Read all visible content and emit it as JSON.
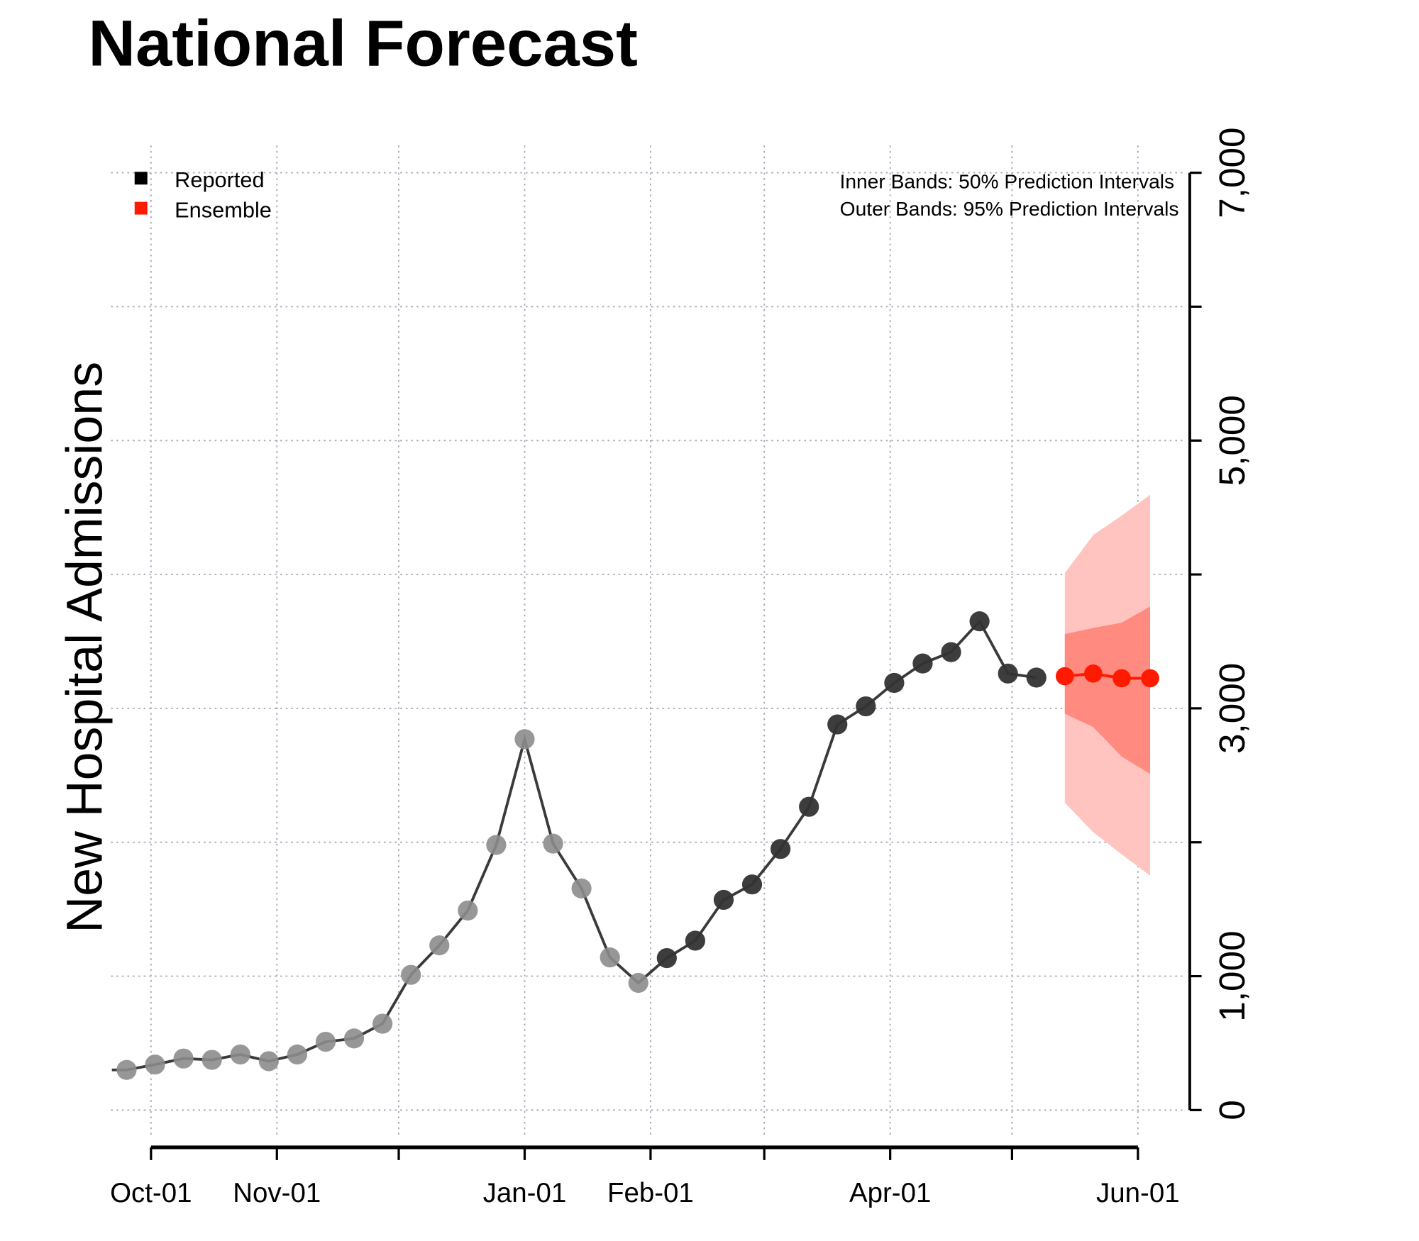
{
  "chart_data": {
    "type": "line",
    "title": "National Forecast",
    "ylabel": "New Hospital Admissions",
    "xlabel": "",
    "ylim": [
      0,
      7000
    ],
    "yticks": [
      0,
      1000,
      2000,
      3000,
      4000,
      5000,
      6000,
      7000
    ],
    "ytick_labels": [
      "0",
      "1,000",
      "3,000",
      "5,000",
      "7,000"
    ],
    "ytick_label_values": [
      0,
      1000,
      3000,
      5000,
      7000
    ],
    "xticks": [
      "Oct-01",
      "Nov-01",
      "Dec-01",
      "Jan-01",
      "Feb-01",
      "Mar-01",
      "Apr-01",
      "May-01",
      "Jun-01"
    ],
    "xtick_labels": [
      "Oct-01",
      "Nov-01",
      "",
      "Jan-01",
      "Feb-01",
      "",
      "Apr-01",
      "",
      "Jun-01"
    ],
    "grid": true,
    "legend": {
      "placement": "top-left",
      "entries": [
        {
          "label": "Reported",
          "color": "#000000"
        },
        {
          "label": "Ensemble",
          "color": "#ff1a00"
        }
      ]
    },
    "annotations": [
      "Inner Bands: 50% Prediction Intervals",
      "Outer Bands: 95% Prediction Intervals"
    ],
    "series": [
      {
        "name": "Reported",
        "color_old": "#8c8c8c",
        "color_recent": "#333333",
        "x": [
          "Sep-25",
          "Oct-02",
          "Oct-09",
          "Oct-16",
          "Oct-23",
          "Oct-30",
          "Nov-06",
          "Nov-13",
          "Nov-20",
          "Nov-27",
          "Dec-04",
          "Dec-11",
          "Dec-18",
          "Dec-25",
          "Jan-01",
          "Jan-08",
          "Jan-15",
          "Jan-22",
          "Jan-29",
          "Feb-05",
          "Feb-12",
          "Feb-19",
          "Feb-26",
          "Mar-05",
          "Mar-12",
          "Mar-19",
          "Mar-26",
          "Apr-02",
          "Apr-09",
          "Apr-16",
          "Apr-23",
          "Apr-30",
          "May-07"
        ],
        "values": [
          300,
          340,
          385,
          375,
          415,
          365,
          415,
          510,
          535,
          645,
          1010,
          1230,
          1490,
          1980,
          2770,
          1990,
          1655,
          1140,
          950,
          1135,
          1265,
          1570,
          1685,
          1950,
          2265,
          2880,
          3015,
          3190,
          3335,
          3420,
          3650,
          3260,
          3230
        ],
        "recent_from": "Feb-05"
      },
      {
        "name": "Ensemble",
        "color": "#ff1a00",
        "x": [
          "May-14",
          "May-21",
          "May-28",
          "Jun-04"
        ],
        "values": [
          3240,
          3260,
          3225,
          3225
        ],
        "pi50_lower": [
          2960,
          2860,
          2640,
          2510
        ],
        "pi50_upper": [
          3555,
          3600,
          3640,
          3760
        ],
        "pi95_lower": [
          2295,
          2075,
          1910,
          1750
        ],
        "pi95_upper": [
          4010,
          4295,
          4440,
          4595
        ],
        "pi50_color": "#ff8a80",
        "pi95_color": "#ffc4c0"
      }
    ]
  }
}
